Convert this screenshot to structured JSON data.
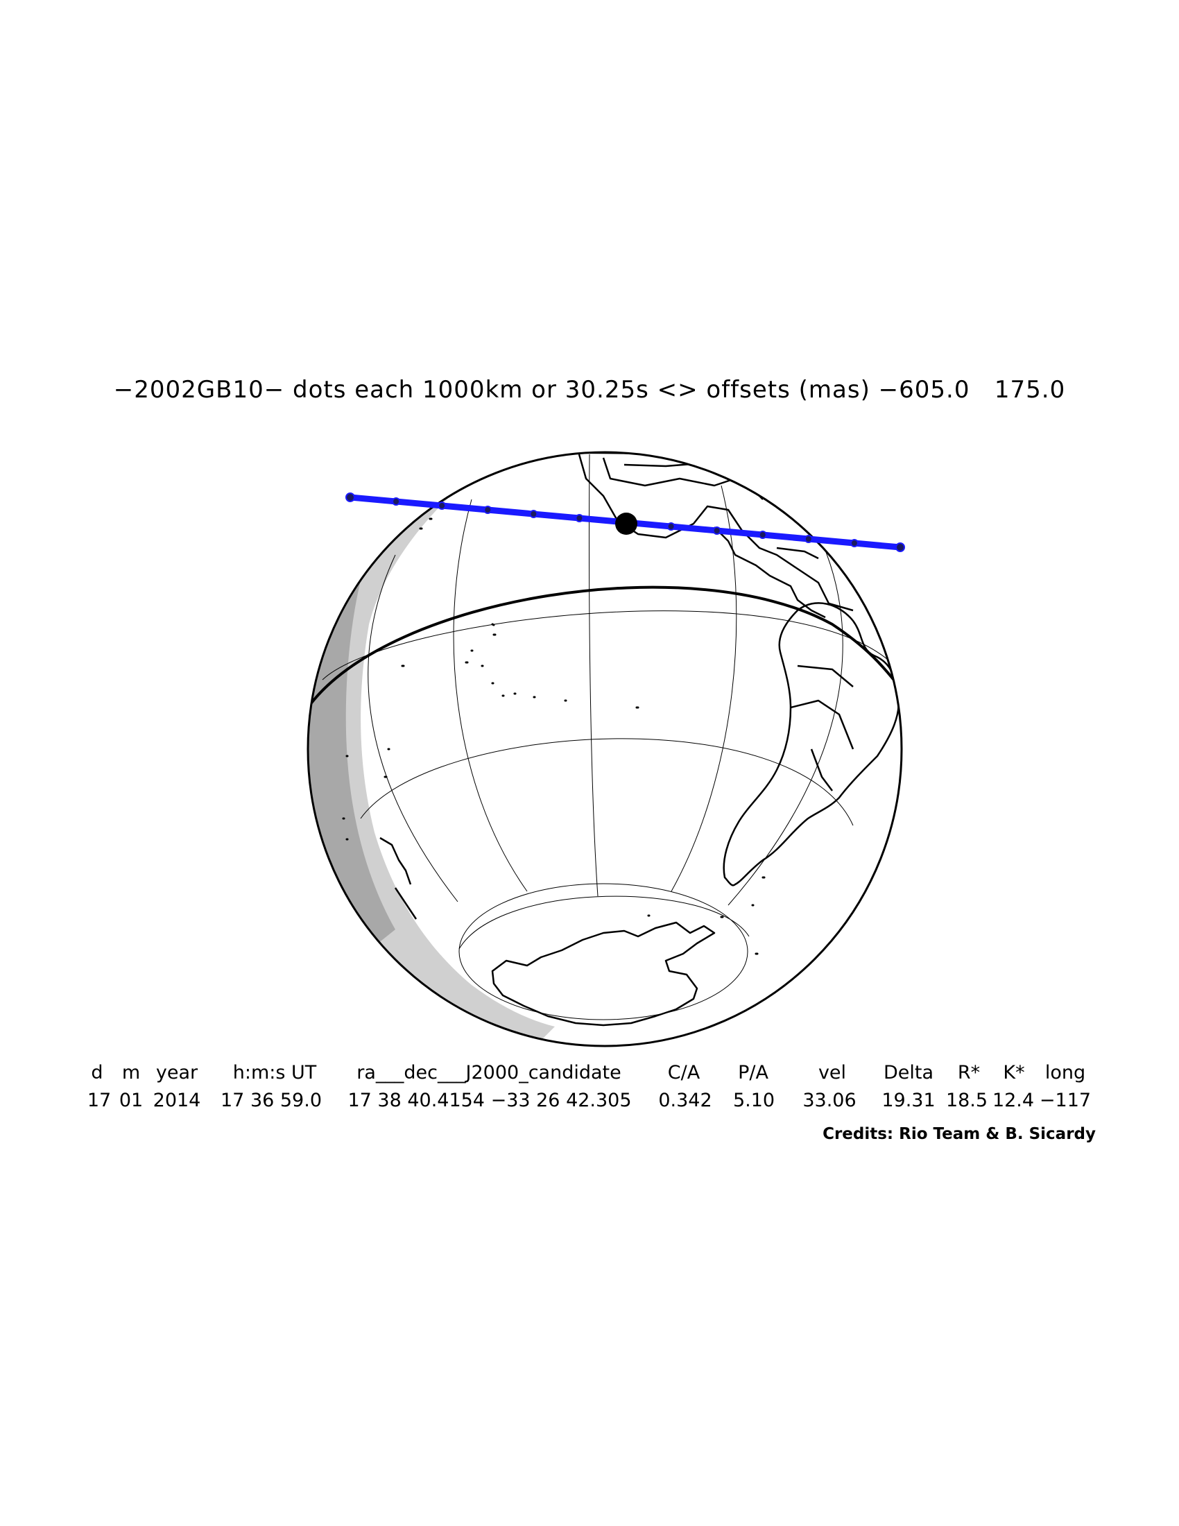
{
  "title": "−2002GB10− dots each 1000km or 30.25s <> offsets (mas) −605.0   175.0",
  "table": {
    "headers": [
      "d",
      "m",
      "year",
      "h:m:s UT",
      "ra___dec___J2000_candidate",
      "C/A",
      "P/A",
      "vel",
      "Delta",
      "R*",
      "K*",
      "long"
    ],
    "values": [
      "17",
      "01",
      "2014",
      "17 36 59.0",
      "17 38 40.4154 −33 26 42.305",
      "0.342",
      "5.10",
      "33.06",
      "19.31",
      "18.5",
      "12.4",
      "−117"
    ]
  },
  "credits": "Credits: Rio Team & B. Sicardy",
  "colors": {
    "track": "#1a1aff",
    "night": "#d0d0d0",
    "night_deep": "#a8a8a8",
    "outline": "#000000"
  }
}
